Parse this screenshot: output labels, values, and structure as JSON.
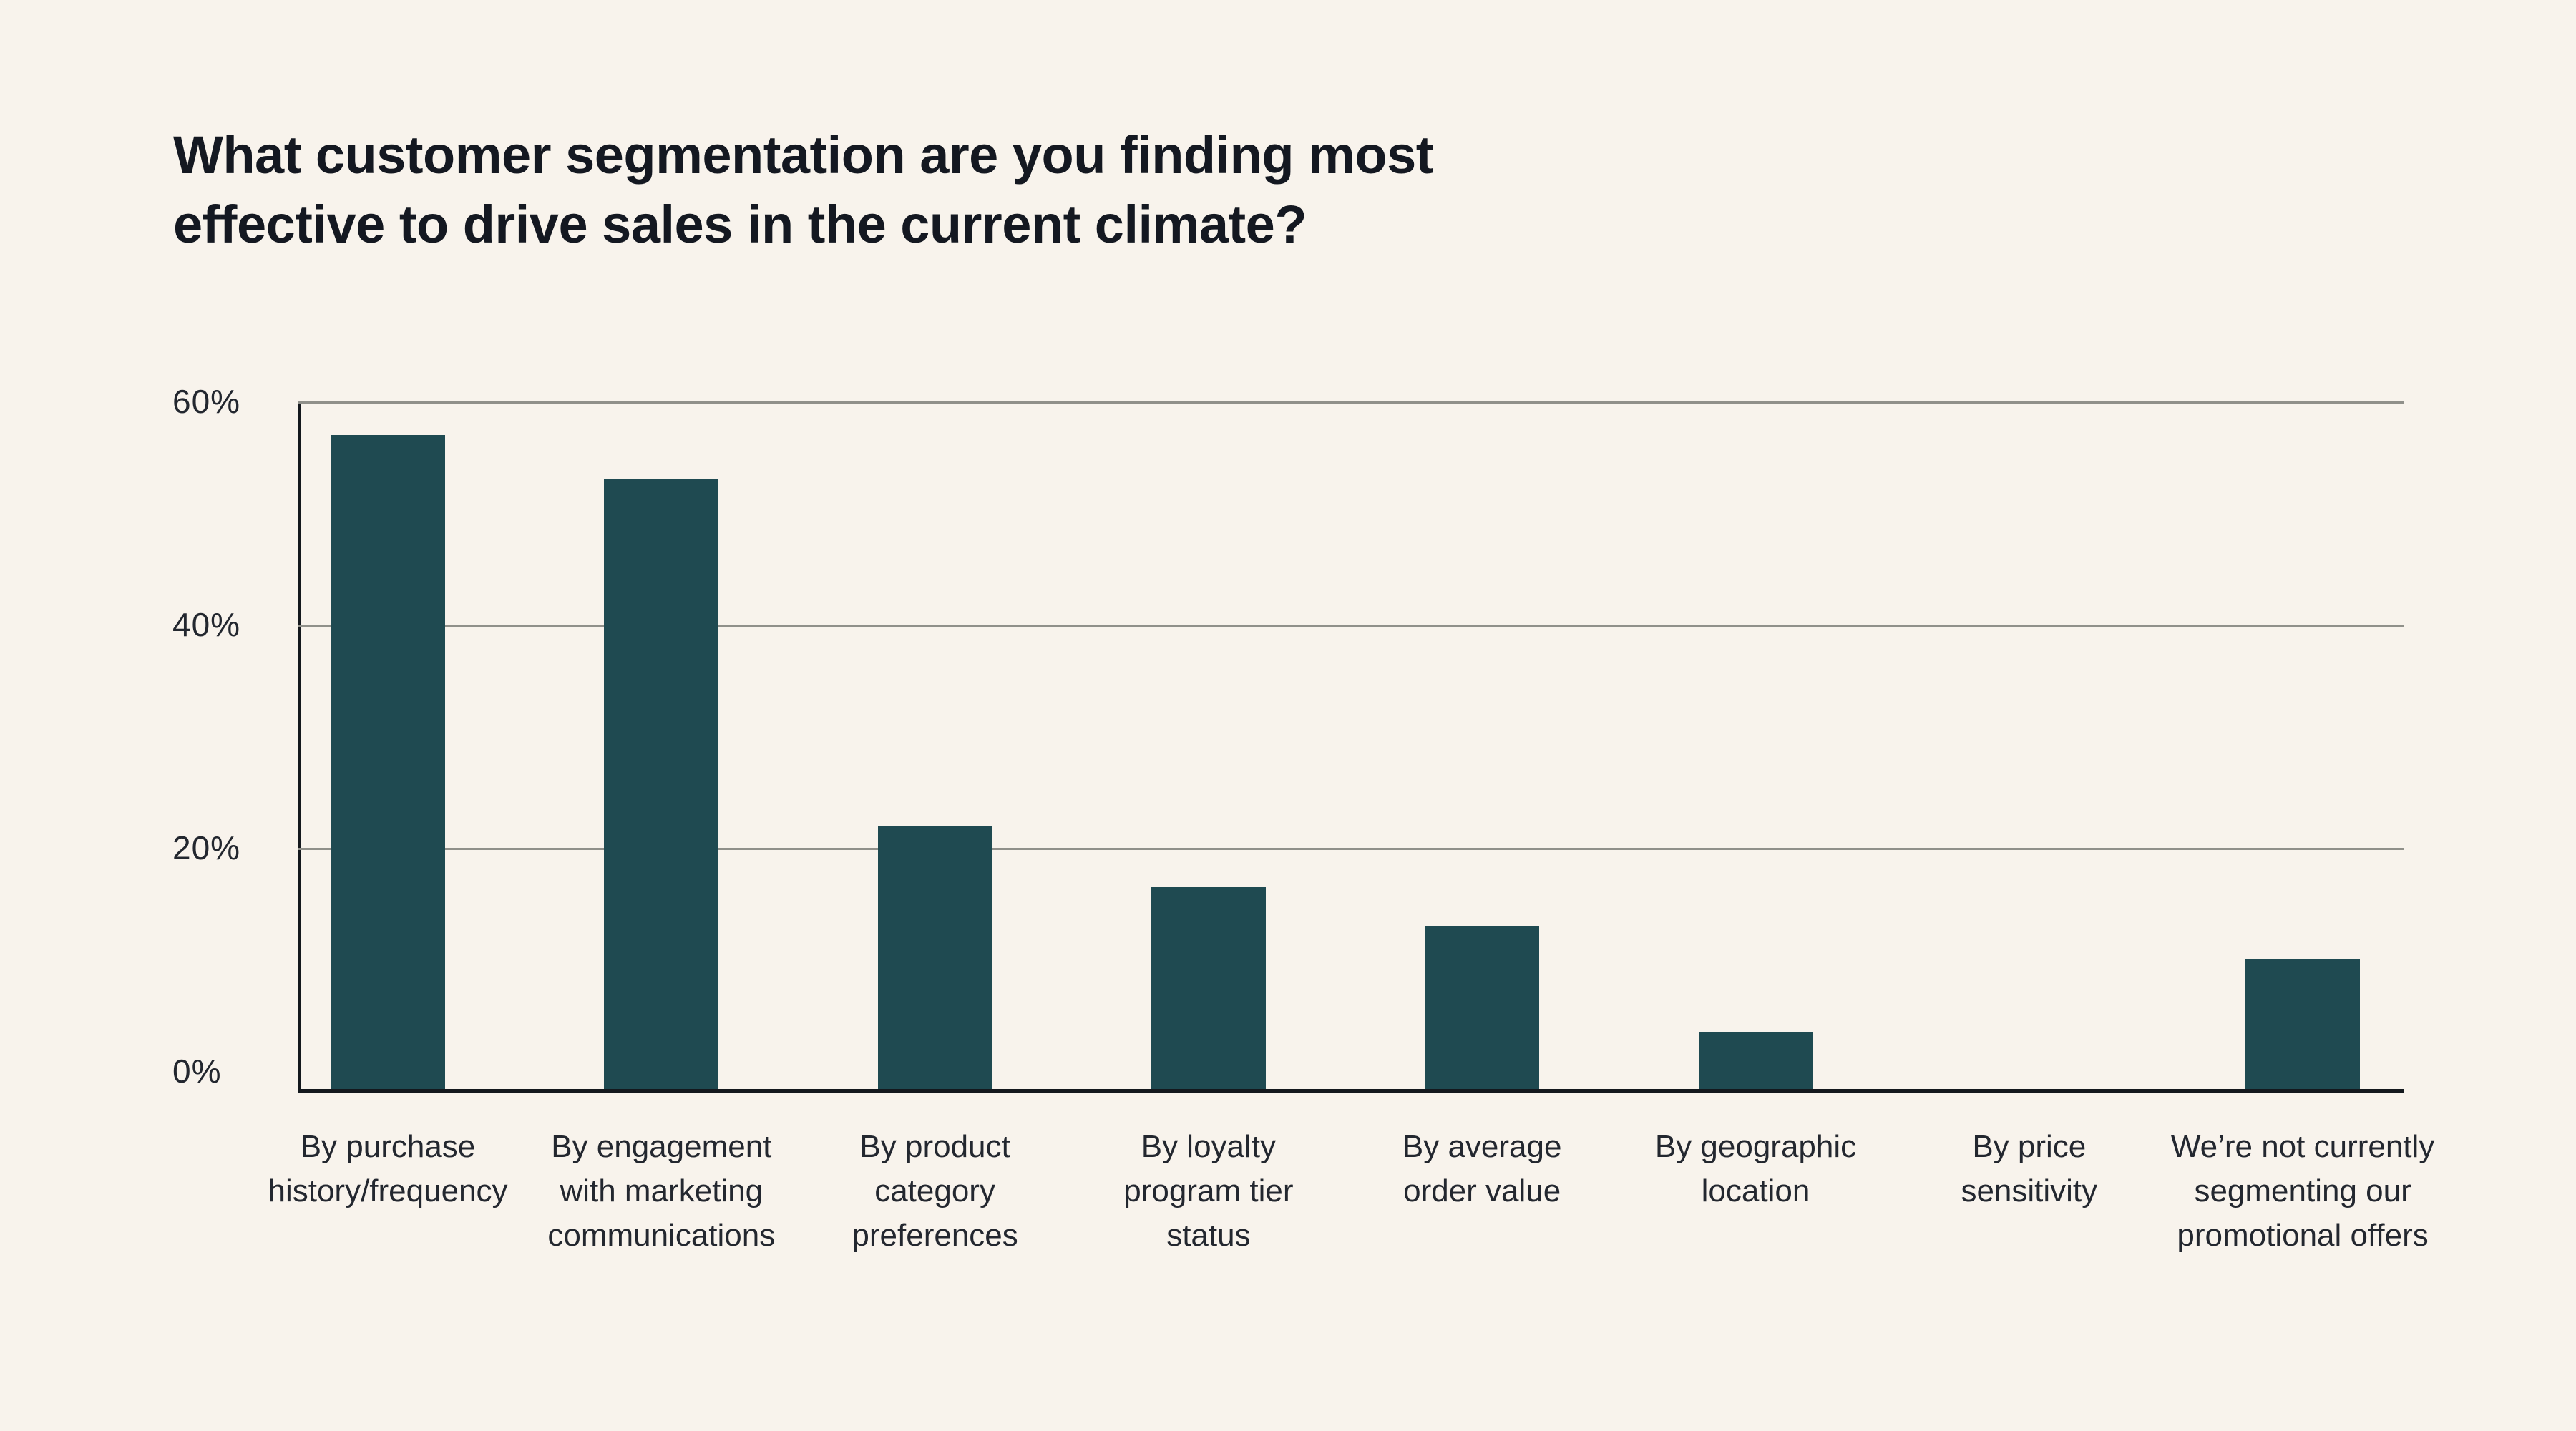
{
  "page": {
    "background_color": "#f8f3ec"
  },
  "chart_data": {
    "type": "bar",
    "title": "What customer segmentation are you finding most effective to drive sales in the current climate?",
    "title_lines": [
      "What customer segmentation are you finding most",
      "effective to drive sales in the current climate?"
    ],
    "categories": [
      "By purchase history/frequency",
      "By engagement with marketing communications",
      "By product category preferences",
      "By loyalty program tier status",
      "By average order value",
      "By geographic location",
      "By price sensitivity",
      "We’re not currently segmenting our promotional offers"
    ],
    "category_lines": [
      [
        "By purchase",
        "history/frequency"
      ],
      [
        "By engagement",
        "with marketing",
        "communications"
      ],
      [
        "By product",
        "category",
        "preferences"
      ],
      [
        "By loyalty",
        "program tier",
        "status"
      ],
      [
        "By average",
        "order value"
      ],
      [
        "By geographic",
        "location"
      ],
      [
        "By price",
        "sensitivity"
      ],
      [
        "We’re not currently",
        "segmenting our",
        "promotional offers"
      ]
    ],
    "values": [
      57,
      53,
      22,
      16.5,
      13,
      3.5,
      0,
      10
    ],
    "unit": "%",
    "ylabel": "",
    "xlabel": "",
    "y_ticks": [
      "60%",
      "40%",
      "20%",
      "0%"
    ],
    "ylim": [
      0,
      60
    ],
    "grid": "horizontal",
    "legend": "none",
    "colors": {
      "bar": "#1f4a51",
      "background": "#f8f3ec",
      "title_text": "#141821",
      "label_text": "#23272f",
      "gridline": "#90908a",
      "axis_line": "#14181d"
    }
  }
}
